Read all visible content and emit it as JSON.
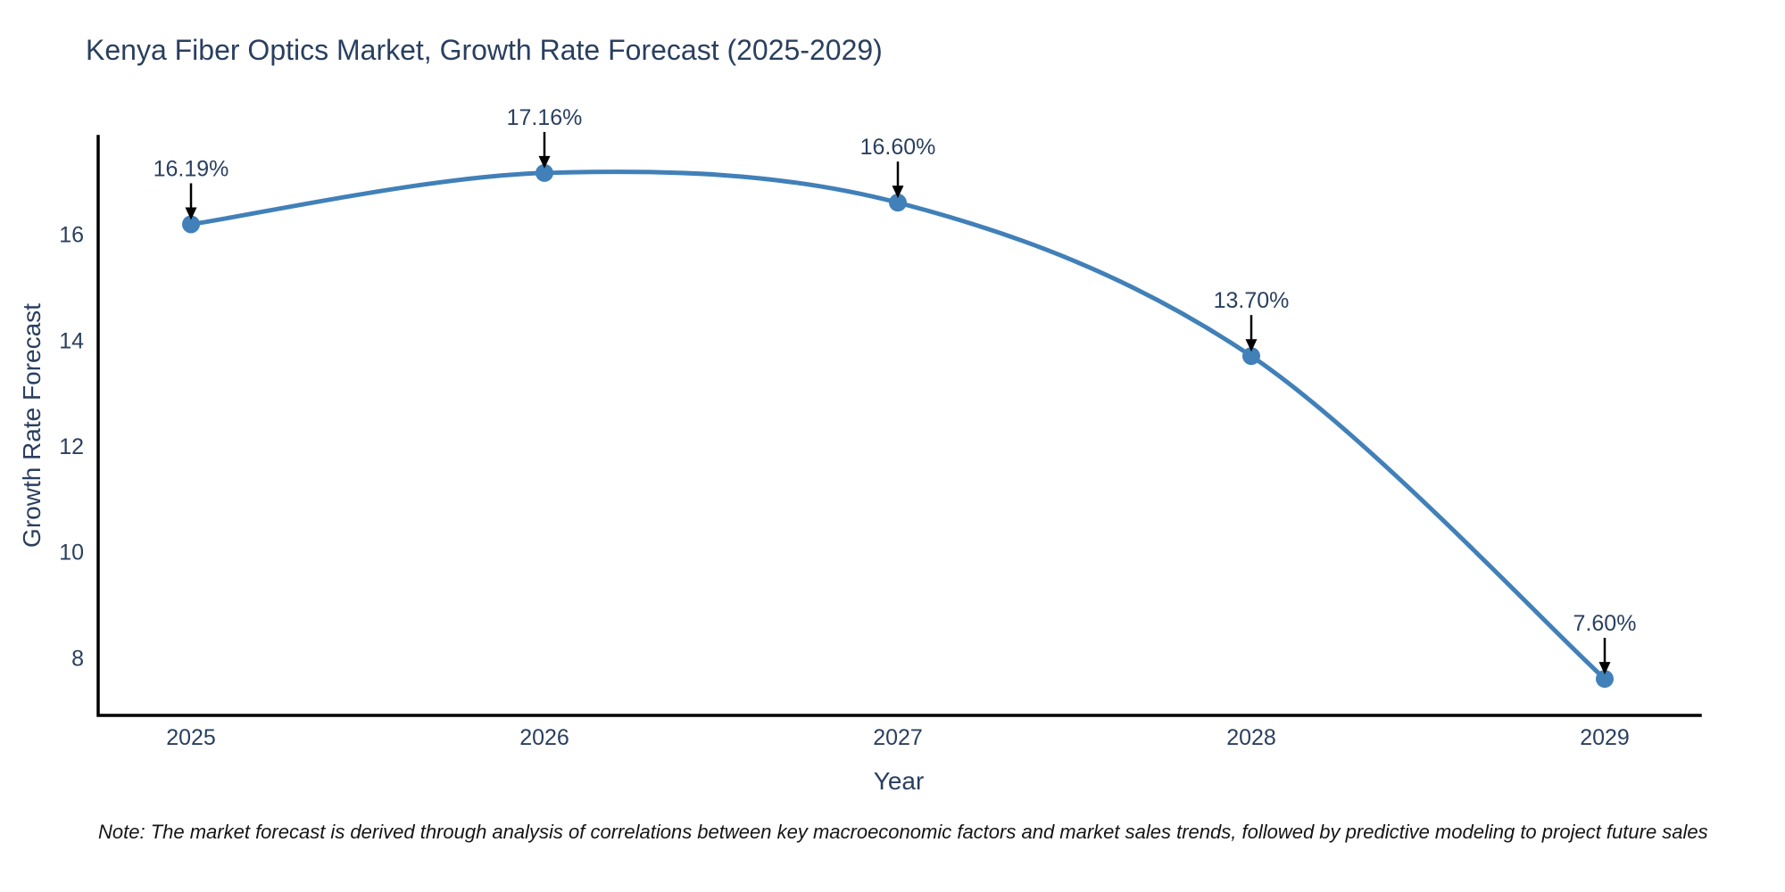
{
  "chart_data": {
    "type": "line",
    "title": "Kenya Fiber Optics Market, Growth Rate Forecast (2025-2029)",
    "xlabel": "Year",
    "ylabel": "Growth Rate Forecast",
    "note": "Note: The market forecast is derived through analysis of correlations between key macroeconomic factors and market sales trends, followed by predictive modeling to project future sales",
    "categories": [
      "2025",
      "2026",
      "2027",
      "2028",
      "2029"
    ],
    "x": [
      2025,
      2026,
      2027,
      2028,
      2029
    ],
    "series": [
      {
        "name": "Growth Rate Forecast",
        "values": [
          16.19,
          17.16,
          16.6,
          13.7,
          7.6
        ]
      }
    ],
    "point_labels": [
      "16.19%",
      "17.16%",
      "16.60%",
      "13.70%",
      "7.60%"
    ],
    "yticks": [
      8,
      10,
      12,
      14,
      16
    ],
    "ylim": [
      6.91,
      17.85
    ],
    "grid": false,
    "legend": "none",
    "line_shape": "spline",
    "line_color": "#4180b8",
    "marker_color": "#4180b8",
    "axis_color": "#000000",
    "text_color": "#2a3f5f",
    "annotation_arrow_color": "#000000"
  }
}
